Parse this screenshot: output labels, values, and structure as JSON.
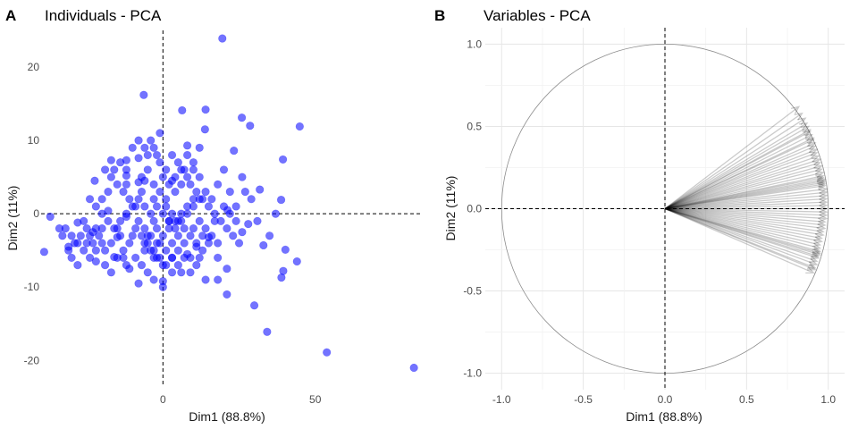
{
  "chart_data": [
    {
      "type": "scatter",
      "panel_letter": "A",
      "title": "Individuals - PCA",
      "xlabel": "Dim1 (88.8%)",
      "ylabel": "Dim2 (11%)",
      "xlim": [
        -40,
        85
      ],
      "ylim": [
        -23.5,
        25
      ],
      "x_ticks": [
        0,
        50
      ],
      "y_ticks": [
        -20,
        -10,
        0,
        10,
        20
      ],
      "grid": false,
      "reference_lines": [
        {
          "axis": "x",
          "value": 0,
          "style": "dashed"
        },
        {
          "axis": "y",
          "value": 0,
          "style": "dashed"
        }
      ],
      "point_color": "#0000ff",
      "point_opacity": 0.55,
      "points": [
        [
          19.5,
          23.9
        ],
        [
          -6.3,
          16.2
        ],
        [
          44.9,
          11.9
        ],
        [
          25.9,
          13.1
        ],
        [
          14,
          14.2
        ],
        [
          6.3,
          14.1
        ],
        [
          28.6,
          12
        ],
        [
          -1,
          11
        ],
        [
          13.8,
          11.5
        ],
        [
          39.4,
          7.4
        ],
        [
          23.3,
          8.6
        ],
        [
          31.8,
          3.3
        ],
        [
          38.8,
          1.9
        ],
        [
          21.2,
          0.5
        ],
        [
          -22.4,
          4.5
        ],
        [
          -17,
          7.3
        ],
        [
          -12,
          7.3
        ],
        [
          -8,
          7.6
        ],
        [
          8,
          9.3
        ],
        [
          -12,
          5.2
        ],
        [
          -8,
          4.3
        ],
        [
          -6,
          4.5
        ],
        [
          3,
          4.5
        ],
        [
          -18,
          0.4
        ],
        [
          -12,
          -0.4
        ],
        [
          -15,
          -3.2
        ],
        [
          -23,
          -2.5
        ],
        [
          -28,
          -1.2
        ],
        [
          -37,
          -0.4
        ],
        [
          -39,
          -5.2
        ],
        [
          -33,
          -3
        ],
        [
          -31,
          -4.5
        ],
        [
          -22,
          -6.5
        ],
        [
          -16,
          -5.9
        ],
        [
          -11,
          -7.5
        ],
        [
          -8,
          -9.5
        ],
        [
          0,
          -10
        ],
        [
          0,
          -9.2
        ],
        [
          3,
          -6
        ],
        [
          8,
          -5.5
        ],
        [
          11,
          -4.5
        ],
        [
          15,
          -3.2
        ],
        [
          18,
          -6
        ],
        [
          21,
          -7.5
        ],
        [
          21,
          -11
        ],
        [
          30,
          -12.5
        ],
        [
          34.2,
          -16.1
        ],
        [
          53.8,
          -18.9
        ],
        [
          82.4,
          -21
        ],
        [
          40.2,
          -4.9
        ],
        [
          44,
          -6.5
        ],
        [
          39.5,
          -7.8
        ],
        [
          38.9,
          -8.7
        ],
        [
          26,
          -2.5
        ],
        [
          28,
          -1.4
        ],
        [
          33,
          -4.3
        ],
        [
          17,
          -1
        ],
        [
          10,
          -2
        ],
        [
          5,
          -3
        ],
        [
          2,
          -1
        ],
        [
          -2,
          -2
        ],
        [
          -5,
          -3
        ],
        [
          -6,
          -5
        ],
        [
          -3,
          -6
        ],
        [
          0,
          -7
        ],
        [
          3,
          -8
        ],
        [
          6,
          -8
        ],
        [
          9,
          -8
        ],
        [
          12,
          -6
        ],
        [
          14,
          -9
        ],
        [
          18,
          -9
        ],
        [
          -12,
          -7
        ],
        [
          -14,
          -3
        ],
        [
          -20,
          -2
        ],
        [
          -25,
          -4
        ],
        [
          -28,
          -7
        ],
        [
          -30,
          -6
        ],
        [
          -34,
          -2
        ],
        [
          -26,
          -1
        ],
        [
          -20,
          -4
        ],
        [
          -15,
          -2
        ],
        [
          -10,
          -3
        ],
        [
          -8,
          -1
        ],
        [
          -6,
          -4
        ],
        [
          -4,
          -5
        ],
        [
          -2,
          -4
        ],
        [
          -9,
          1
        ],
        [
          -11,
          2
        ],
        [
          -13,
          3
        ],
        [
          -15,
          4
        ],
        [
          -17,
          5
        ],
        [
          -19,
          6
        ],
        [
          -12,
          4
        ],
        [
          -7,
          3
        ],
        [
          -3,
          2
        ],
        [
          1,
          2
        ],
        [
          4,
          3
        ],
        [
          6,
          4
        ],
        [
          8,
          5
        ],
        [
          10,
          6
        ],
        [
          12,
          5
        ],
        [
          14,
          3
        ],
        [
          16,
          2
        ],
        [
          18,
          4
        ],
        [
          20,
          6
        ],
        [
          22,
          3
        ],
        [
          24,
          1
        ],
        [
          26,
          5
        ],
        [
          -5,
          8
        ],
        [
          -3,
          9
        ],
        [
          -1,
          7
        ],
        [
          1,
          6
        ],
        [
          3,
          8
        ],
        [
          5,
          7
        ],
        [
          7,
          6
        ],
        [
          9,
          4
        ],
        [
          11,
          3
        ],
        [
          13,
          2
        ],
        [
          15,
          1
        ],
        [
          17,
          0
        ],
        [
          19,
          -1
        ],
        [
          21,
          -2
        ],
        [
          23,
          -3
        ],
        [
          25,
          -4
        ],
        [
          -24,
          2
        ],
        [
          -22,
          1
        ],
        [
          -20,
          0
        ],
        [
          -18,
          -1
        ],
        [
          -16,
          -2
        ],
        [
          -14,
          -1
        ],
        [
          -12,
          0
        ],
        [
          -10,
          1
        ],
        [
          -8,
          2
        ],
        [
          -6,
          1
        ],
        [
          -4,
          0
        ],
        [
          -2,
          1
        ],
        [
          0,
          0
        ],
        [
          2,
          -1
        ],
        [
          4,
          -2
        ],
        [
          6,
          -1
        ],
        [
          8,
          0
        ],
        [
          10,
          1
        ],
        [
          12,
          2
        ],
        [
          -27,
          -3
        ],
        [
          -29,
          -4
        ],
        [
          -31,
          -5
        ],
        [
          -24,
          -6
        ],
        [
          -22,
          -5
        ],
        [
          -19,
          -7
        ],
        [
          -17,
          -8
        ],
        [
          -13,
          -6
        ],
        [
          -9,
          -6
        ],
        [
          -7,
          -7
        ],
        [
          -5,
          -8
        ],
        [
          -3,
          -9
        ],
        [
          1,
          -5
        ],
        [
          3,
          -4
        ],
        [
          5,
          -5
        ],
        [
          7,
          -4
        ],
        [
          9,
          -6
        ],
        [
          11,
          -7
        ],
        [
          13,
          -5
        ],
        [
          15,
          -4
        ],
        [
          -10,
          9
        ],
        [
          -8,
          10
        ],
        [
          -6,
          9
        ],
        [
          -4,
          10
        ],
        [
          -2,
          8
        ],
        [
          0,
          5
        ],
        [
          2,
          4
        ],
        [
          4,
          5
        ],
        [
          6,
          6
        ],
        [
          8,
          8
        ],
        [
          10,
          7
        ],
        [
          12,
          9
        ],
        [
          -12,
          6
        ],
        [
          -14,
          7
        ],
        [
          -16,
          6
        ],
        [
          -18,
          3
        ],
        [
          -20,
          2
        ],
        [
          -22,
          -2
        ],
        [
          -24,
          -3
        ],
        [
          -26,
          -5
        ],
        [
          -28,
          -4
        ],
        [
          -30,
          -3
        ],
        [
          -32,
          -2
        ],
        [
          -6,
          -2
        ],
        [
          -4,
          -3
        ],
        [
          -2,
          -6
        ],
        [
          0,
          -3
        ],
        [
          2,
          -2
        ],
        [
          4,
          -1
        ],
        [
          6,
          0
        ],
        [
          8,
          1
        ],
        [
          10,
          2
        ],
        [
          12,
          -1
        ],
        [
          14,
          -2
        ],
        [
          16,
          -3
        ],
        [
          18,
          -4
        ],
        [
          -11,
          -4
        ],
        [
          -13,
          -5
        ],
        [
          -15,
          -6
        ],
        [
          -17,
          -4
        ],
        [
          -19,
          -5
        ],
        [
          -21,
          -3
        ],
        [
          -23,
          -4
        ],
        [
          -25,
          -2
        ],
        [
          -7,
          5
        ],
        [
          -5,
          6
        ],
        [
          -3,
          4
        ],
        [
          -1,
          3
        ],
        [
          1,
          1
        ],
        [
          3,
          0
        ],
        [
          5,
          -1
        ],
        [
          7,
          -2
        ],
        [
          9,
          -3
        ],
        [
          11,
          -4
        ],
        [
          13,
          -3
        ],
        [
          -9,
          -2
        ],
        [
          -7,
          -3
        ],
        [
          -5,
          -4
        ],
        [
          -3,
          -5
        ],
        [
          -1,
          -6
        ],
        [
          1,
          -7
        ],
        [
          3,
          -6
        ],
        [
          5,
          -7
        ],
        [
          7,
          -6
        ],
        [
          20,
          1
        ],
        [
          22,
          0
        ],
        [
          24,
          -1
        ],
        [
          27,
          3
        ],
        [
          29,
          2
        ],
        [
          31,
          -1
        ],
        [
          35,
          -3
        ],
        [
          37,
          0
        ],
        [
          -1,
          -4
        ],
        [
          -3,
          -1
        ]
      ]
    },
    {
      "type": "line",
      "chart_subtype": "correlation_circle",
      "panel_letter": "B",
      "title": "Variables - PCA",
      "xlabel": "Dim1 (88.8%)",
      "ylabel": "Dim2 (11%)",
      "xlim": [
        -1.1,
        1.1
      ],
      "ylim": [
        -1.1,
        1.1
      ],
      "x_ticks": [
        -1.0,
        -0.5,
        0.0,
        0.5,
        1.0
      ],
      "x_tick_labels": [
        "-1.0",
        "-0.5",
        "0.0",
        "0.5",
        "1.0"
      ],
      "y_ticks": [
        -1.0,
        -0.5,
        0.0,
        0.5,
        1.0
      ],
      "y_tick_labels": [
        "-1.0",
        "-0.5",
        "0.0",
        "0.5",
        "1.0"
      ],
      "grid": true,
      "unit_circle": true,
      "reference_lines": [
        {
          "axis": "x",
          "value": 0,
          "style": "dashed"
        },
        {
          "axis": "y",
          "value": 0,
          "style": "dashed"
        }
      ],
      "arrow_color": "#000000",
      "arrow_opacity": 0.2,
      "arrows": [
        [
          0.82,
          0.62
        ],
        [
          0.84,
          0.58
        ],
        [
          0.86,
          0.55
        ],
        [
          0.87,
          0.52
        ],
        [
          0.88,
          0.5
        ],
        [
          0.89,
          0.48
        ],
        [
          0.89,
          0.47
        ],
        [
          0.9,
          0.45
        ],
        [
          0.91,
          0.43
        ],
        [
          0.91,
          0.42
        ],
        [
          0.92,
          0.4
        ],
        [
          0.92,
          0.38
        ],
        [
          0.93,
          0.36
        ],
        [
          0.93,
          0.34
        ],
        [
          0.94,
          0.32
        ],
        [
          0.95,
          0.3
        ],
        [
          0.95,
          0.28
        ],
        [
          0.96,
          0.26
        ],
        [
          0.96,
          0.24
        ],
        [
          0.97,
          0.22
        ],
        [
          0.97,
          0.2
        ],
        [
          0.97,
          0.19
        ],
        [
          0.98,
          0.18
        ],
        [
          0.98,
          0.17
        ],
        [
          0.98,
          0.16
        ],
        [
          0.98,
          0.15
        ],
        [
          0.98,
          0.14
        ],
        [
          0.99,
          0.12
        ],
        [
          0.99,
          0.1
        ],
        [
          0.99,
          0.08
        ],
        [
          0.99,
          0.06
        ],
        [
          0.99,
          0.04
        ],
        [
          0.99,
          0.02
        ],
        [
          0.99,
          0.0
        ],
        [
          0.99,
          -0.02
        ],
        [
          0.99,
          -0.04
        ],
        [
          0.99,
          -0.06
        ],
        [
          0.98,
          -0.08
        ],
        [
          0.98,
          -0.1
        ],
        [
          0.98,
          -0.12
        ],
        [
          0.97,
          -0.14
        ],
        [
          0.97,
          -0.16
        ],
        [
          0.96,
          -0.18
        ],
        [
          0.96,
          -0.2
        ],
        [
          0.95,
          -0.22
        ],
        [
          0.95,
          -0.24
        ],
        [
          0.95,
          -0.26
        ],
        [
          0.95,
          -0.27
        ],
        [
          0.95,
          -0.28
        ],
        [
          0.94,
          -0.29
        ],
        [
          0.94,
          -0.3
        ],
        [
          0.93,
          -0.32
        ],
        [
          0.93,
          -0.34
        ],
        [
          0.92,
          -0.36
        ],
        [
          0.92,
          -0.37
        ],
        [
          0.91,
          -0.39
        ]
      ]
    }
  ]
}
